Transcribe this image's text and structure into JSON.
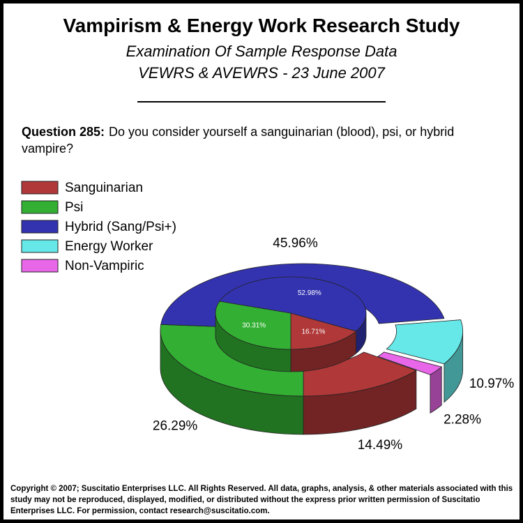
{
  "title": "Vampirism & Energy Work Research Study",
  "subtitle": "Examination Of Sample Response Data",
  "subtitle2": "VEWRS & AVEWRS - 23 June 2007",
  "question_label": "Question 285:",
  "question": "Do you consider yourself a sanguinarian (blood), psi, or hybrid vampire?",
  "copyright": "Copyright © 2007; Suscitatio Enterprises LLC. All Rights Reserved. All data, graphs, analysis, & other materials associated with this study may not be reproduced, displayed, modified, or distributed without the express prior written permission of Suscitatio Enterprises LLC. For permission, contact research@suscitatio.com.",
  "chart_data": {
    "type": "pie",
    "categories": [
      "Sanguinarian",
      "Psi",
      "Hybrid (Sang/Psi+)",
      "Energy Worker",
      "Non-Vampiric"
    ],
    "colors": [
      "#b03838",
      "#33b033",
      "#3333b0",
      "#66e8e8",
      "#e866e8"
    ],
    "series": [
      {
        "values": [
          14.49,
          26.29,
          45.96,
          10.97,
          2.28
        ],
        "value_labels": [
          "14.49%",
          "26.29%",
          "45.96%",
          "10.97%",
          "2.28%"
        ]
      },
      {
        "values": [
          16.71,
          30.31,
          52.98,
          null,
          null
        ],
        "value_labels": [
          "16.71%",
          "30.31%",
          "52.98%",
          null,
          null
        ]
      }
    ]
  }
}
